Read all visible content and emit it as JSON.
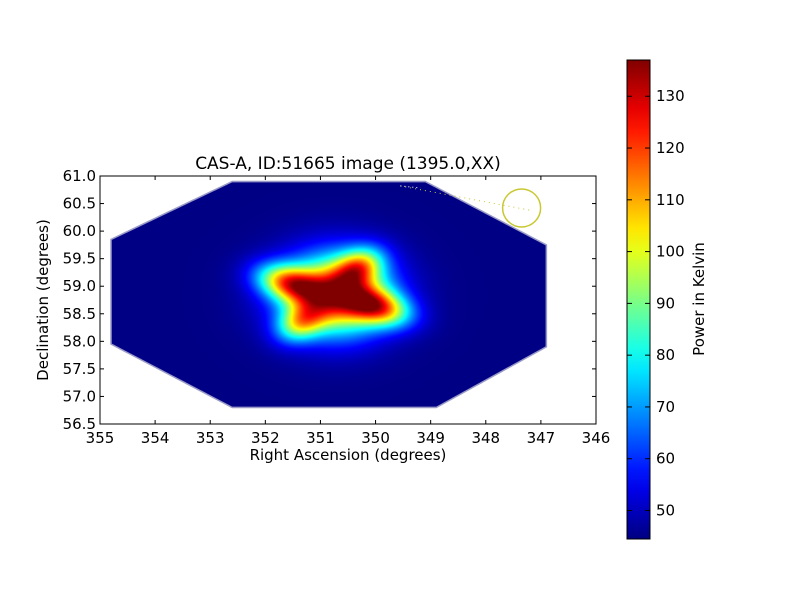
{
  "chart_data": {
    "type": "heatmap",
    "title": "CAS-A, ID:51665 image (1395.0,XX)",
    "xlabel": "Right Ascension (degrees)",
    "ylabel": "Declination (degrees)",
    "xlim": [
      355,
      346
    ],
    "ylim": [
      56.5,
      61.0
    ],
    "x_ticks": [
      "355",
      "354",
      "353",
      "352",
      "351",
      "350",
      "349",
      "348",
      "347",
      "346"
    ],
    "y_ticks": [
      "56.5",
      "57.0",
      "57.5",
      "58.0",
      "58.5",
      "59.0",
      "59.5",
      "60.0",
      "60.5",
      "61.0"
    ],
    "colorbar": {
      "label": "Power in Kelvin",
      "colormap": "jet",
      "range": [
        44.5,
        137
      ],
      "ticks": [
        "50",
        "60",
        "70",
        "80",
        "90",
        "100",
        "110",
        "120",
        "130"
      ]
    },
    "map_footprint": {
      "ra_range": [
        346.9,
        354.8
      ],
      "dec_range": [
        56.8,
        60.9
      ],
      "shape": "octagon",
      "background_value": 45
    },
    "sources": [
      {
        "ra": 351.55,
        "dec": 59.05,
        "peak_k": 137
      },
      {
        "ra": 349.95,
        "dec": 58.62,
        "peak_k": 133
      },
      {
        "ra": 350.65,
        "dec": 58.85,
        "peak_k": 116
      },
      {
        "ra": 350.3,
        "dec": 59.35,
        "peak_k": 112
      },
      {
        "ra": 351.35,
        "dec": 58.35,
        "peak_k": 112
      }
    ],
    "beam_marker": {
      "ra": 347.35,
      "dec": 60.42,
      "color": "#c8c832"
    },
    "beam_track": {
      "from": {
        "ra": 349.55,
        "dec": 60.82
      },
      "to": {
        "ra": 347.2,
        "dec": 60.38
      }
    },
    "grid": false
  }
}
